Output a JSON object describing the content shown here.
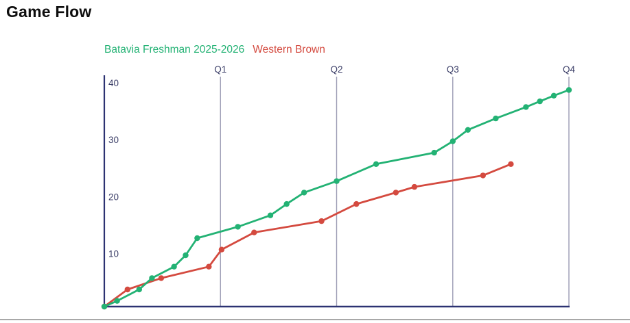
{
  "page": {
    "title": "Game Flow"
  },
  "legend": [
    {
      "label": "Batavia Freshman 2025-2026",
      "color": "#23b274"
    },
    {
      "label": "Western Brown",
      "color": "#d44a3f"
    }
  ],
  "axis": {
    "color": "#2c3272",
    "label_color": "#3c3f68",
    "quarter_line_color": "#9b9bb4",
    "divider_color": "#a8a8a8"
  },
  "chart_data": {
    "type": "line",
    "title": "Game Flow",
    "xlabel": "",
    "ylabel": "",
    "x_unit": "game time in quarters",
    "xlim": [
      0,
      4
    ],
    "ylim": [
      0,
      40.5
    ],
    "yticks": [
      10,
      20,
      30,
      40
    ],
    "quarter_labels": [
      "Q1",
      "Q2",
      "Q3",
      "Q4"
    ],
    "quarter_positions": [
      1,
      2,
      3,
      4
    ],
    "grid": "vertical quarter lines only",
    "legend_position": "top",
    "series": [
      {
        "name": "Batavia Freshman 2025-2026",
        "color": "#23b274",
        "points": [
          [
            0,
            0
          ],
          [
            0.11,
            1
          ],
          [
            0.3,
            3
          ],
          [
            0.41,
            5
          ],
          [
            0.6,
            7
          ],
          [
            0.7,
            9
          ],
          [
            0.8,
            12
          ],
          [
            1.15,
            14
          ],
          [
            1.43,
            16
          ],
          [
            1.57,
            18
          ],
          [
            1.72,
            20
          ],
          [
            2.0,
            22
          ],
          [
            2.34,
            25
          ],
          [
            2.84,
            27
          ],
          [
            3.0,
            29
          ],
          [
            3.13,
            31
          ],
          [
            3.37,
            33
          ],
          [
            3.63,
            35
          ],
          [
            3.75,
            36
          ],
          [
            3.87,
            37
          ],
          [
            4.0,
            38
          ]
        ]
      },
      {
        "name": "Western Brown",
        "color": "#d44a3f",
        "points": [
          [
            0,
            0
          ],
          [
            0.2,
            3
          ],
          [
            0.49,
            5
          ],
          [
            0.9,
            7
          ],
          [
            1.01,
            10
          ],
          [
            1.29,
            13
          ],
          [
            1.87,
            15
          ],
          [
            2.17,
            18
          ],
          [
            2.51,
            20
          ],
          [
            2.67,
            21
          ],
          [
            3.26,
            23
          ],
          [
            3.5,
            25
          ]
        ]
      }
    ]
  }
}
